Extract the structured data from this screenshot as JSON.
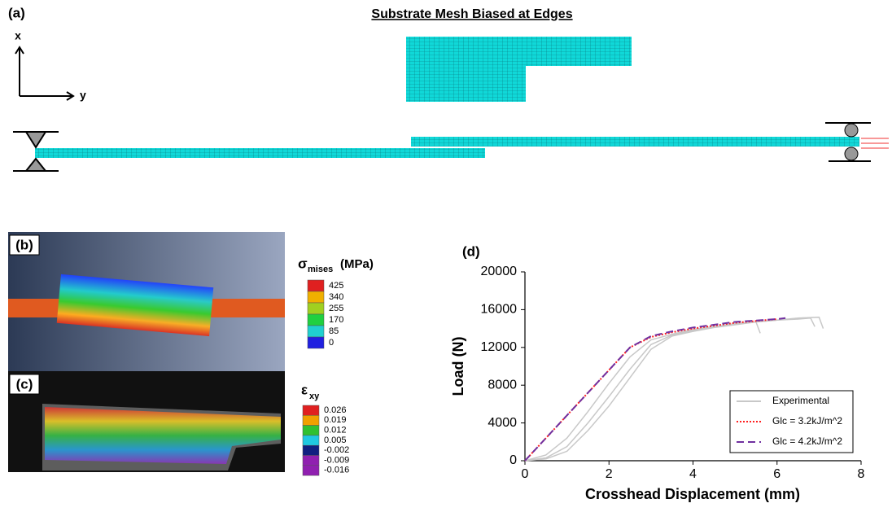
{
  "panels": {
    "a": {
      "label": "(a)",
      "title": "Substrate Mesh Biased at Edges",
      "axis_x": "x",
      "axis_y": "y"
    },
    "b": {
      "label": "(b)",
      "legend_symbol": "σ",
      "legend_sub": "mises",
      "legend_unit": "(MPa)",
      "legend_labels": [
        "425",
        "340",
        "255",
        "170",
        "85",
        "0"
      ]
    },
    "c": {
      "label": "(c)",
      "legend_symbol": "ε",
      "legend_sub": "xy",
      "legend_labels": [
        "0.026",
        "0.019",
        "0.012",
        "0.005",
        "-0.002",
        "-0.009",
        "-0.016"
      ]
    }
  },
  "chart_data": {
    "type": "line",
    "panel_label": "(d)",
    "x_label": "Crosshead Displacement (mm)",
    "y_label": "Load (N)",
    "xlim": [
      0,
      8
    ],
    "xticks": [
      0,
      2,
      4,
      6,
      8
    ],
    "ylim": [
      0,
      20000
    ],
    "yticks": [
      0,
      4000,
      8000,
      12000,
      16000,
      20000
    ],
    "legend_position": "lower right",
    "series": [
      {
        "name": "Experimental",
        "color": "#c8c8c8",
        "dash": "solid",
        "x": [
          0,
          0.5,
          1,
          1.5,
          2,
          2.5,
          3,
          3.5,
          4,
          4.5,
          5,
          5.5,
          6,
          6.5,
          7,
          7.1
        ],
        "values": [
          0,
          300,
          1500,
          4000,
          6800,
          9700,
          12300,
          13300,
          13800,
          14200,
          14500,
          14700,
          14900,
          15100,
          15200,
          14000
        ]
      },
      {
        "name": "Experimental",
        "color": "#c8c8c8",
        "dash": "solid",
        "x": [
          0,
          0.5,
          1,
          1.5,
          2,
          2.5,
          3,
          3.5,
          4,
          4.5,
          5,
          5.5,
          5.6
        ],
        "values": [
          0,
          600,
          2400,
          5200,
          8200,
          11000,
          12800,
          13400,
          13900,
          14200,
          14500,
          14700,
          13500
        ]
      },
      {
        "name": "Experimental",
        "color": "#c8c8c8",
        "dash": "solid",
        "x": [
          0,
          0.5,
          1,
          1.5,
          2,
          2.5,
          3,
          3.5,
          4,
          4.5,
          5,
          5.5,
          6,
          6.5,
          6.8,
          6.9
        ],
        "values": [
          0,
          200,
          1000,
          3200,
          5800,
          8800,
          11800,
          13200,
          13700,
          14100,
          14400,
          14700,
          14900,
          15000,
          15100,
          14200
        ]
      },
      {
        "name": "Glc = 3.2kJ/m^2",
        "color": "#ff2020",
        "dash": "dotted",
        "x": [
          0,
          0.5,
          1,
          1.5,
          2,
          2.5,
          3,
          3.5,
          4,
          5,
          6
        ],
        "values": [
          0,
          2400,
          4800,
          7200,
          9600,
          12000,
          13100,
          13600,
          14000,
          14600,
          15000
        ]
      },
      {
        "name": "Glc = 4.2kJ/m^2",
        "color": "#7030a0",
        "dash": "dashed",
        "x": [
          0,
          0.5,
          1,
          1.5,
          2,
          2.5,
          3,
          3.5,
          4,
          5,
          6,
          6.2
        ],
        "values": [
          0,
          2400,
          4800,
          7200,
          9600,
          12000,
          13200,
          13700,
          14100,
          14700,
          15000,
          15100
        ]
      }
    ]
  }
}
